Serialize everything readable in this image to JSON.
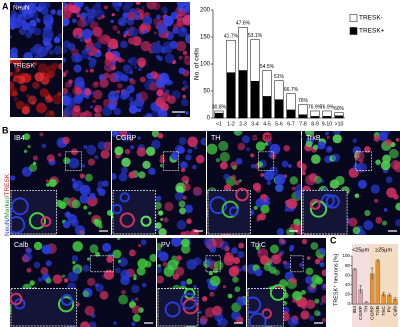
{
  "panel_labels": [
    "A",
    "B",
    "C"
  ],
  "image_labels_a": [
    "NeuN",
    "TRESK"
  ],
  "image_labels_b": [
    "IB4",
    "CGRP",
    "TH",
    "TrkB",
    "Calb",
    "PV",
    "TrkC"
  ],
  "side_label": [
    "NeuN",
    "/",
    "Marker",
    "/",
    "TRESK"
  ],
  "chart_data": [
    {
      "type": "stacked-bar",
      "ylabel": "No. of cells",
      "xlabel": "Cell area (100μm²)",
      "categories": [
        "<1",
        "1-2",
        "2-3",
        "3-4",
        "4-5",
        "5-6",
        "6-7",
        "7-8",
        "8-9",
        "9-10",
        ">10"
      ],
      "series": [
        {
          "name": "TRESK+",
          "color": "#000000",
          "values": [
            9,
            84,
            88,
            68,
            40,
            34,
            15,
            6,
            3,
            3,
            4
          ]
        },
        {
          "name": "TRESK-",
          "color": "#ffffff",
          "values": [
            4,
            60,
            80,
            77,
            48,
            35,
            30,
            19,
            10,
            10,
            6
          ]
        }
      ],
      "annotations": [
        "30.8%",
        "41.7%",
        "47.6%",
        "53.1%",
        "54.5%",
        "51%",
        "66.7%",
        "76%",
        "76.9%",
        "76.9%",
        "60%"
      ],
      "ylim": [
        0,
        200
      ],
      "yticks": [
        0,
        50,
        100,
        150,
        200
      ]
    },
    {
      "type": "bar",
      "ylabel": "TRESK⁺ neurons [%]",
      "categories": [
        "IB4",
        "CGRP",
        "TH",
        "CGRP",
        "TrkB",
        "TrkC",
        "PV",
        "Calb"
      ],
      "values": [
        72,
        30,
        3,
        63,
        90,
        20,
        18,
        10
      ],
      "errors": [
        2,
        8,
        2,
        12,
        2,
        4,
        3,
        3
      ],
      "groups": [
        {
          "label": "<25μm",
          "span": 3,
          "color": "#f2dede",
          "bar_color": "#d9a3a3"
        },
        {
          "label": "≥25μm",
          "span": 5,
          "color": "#f3dcc2",
          "bar_color": "#e8922e"
        }
      ],
      "ylim": [
        0,
        100
      ],
      "yticks": [
        0,
        20,
        40,
        60,
        80,
        100
      ]
    }
  ]
}
